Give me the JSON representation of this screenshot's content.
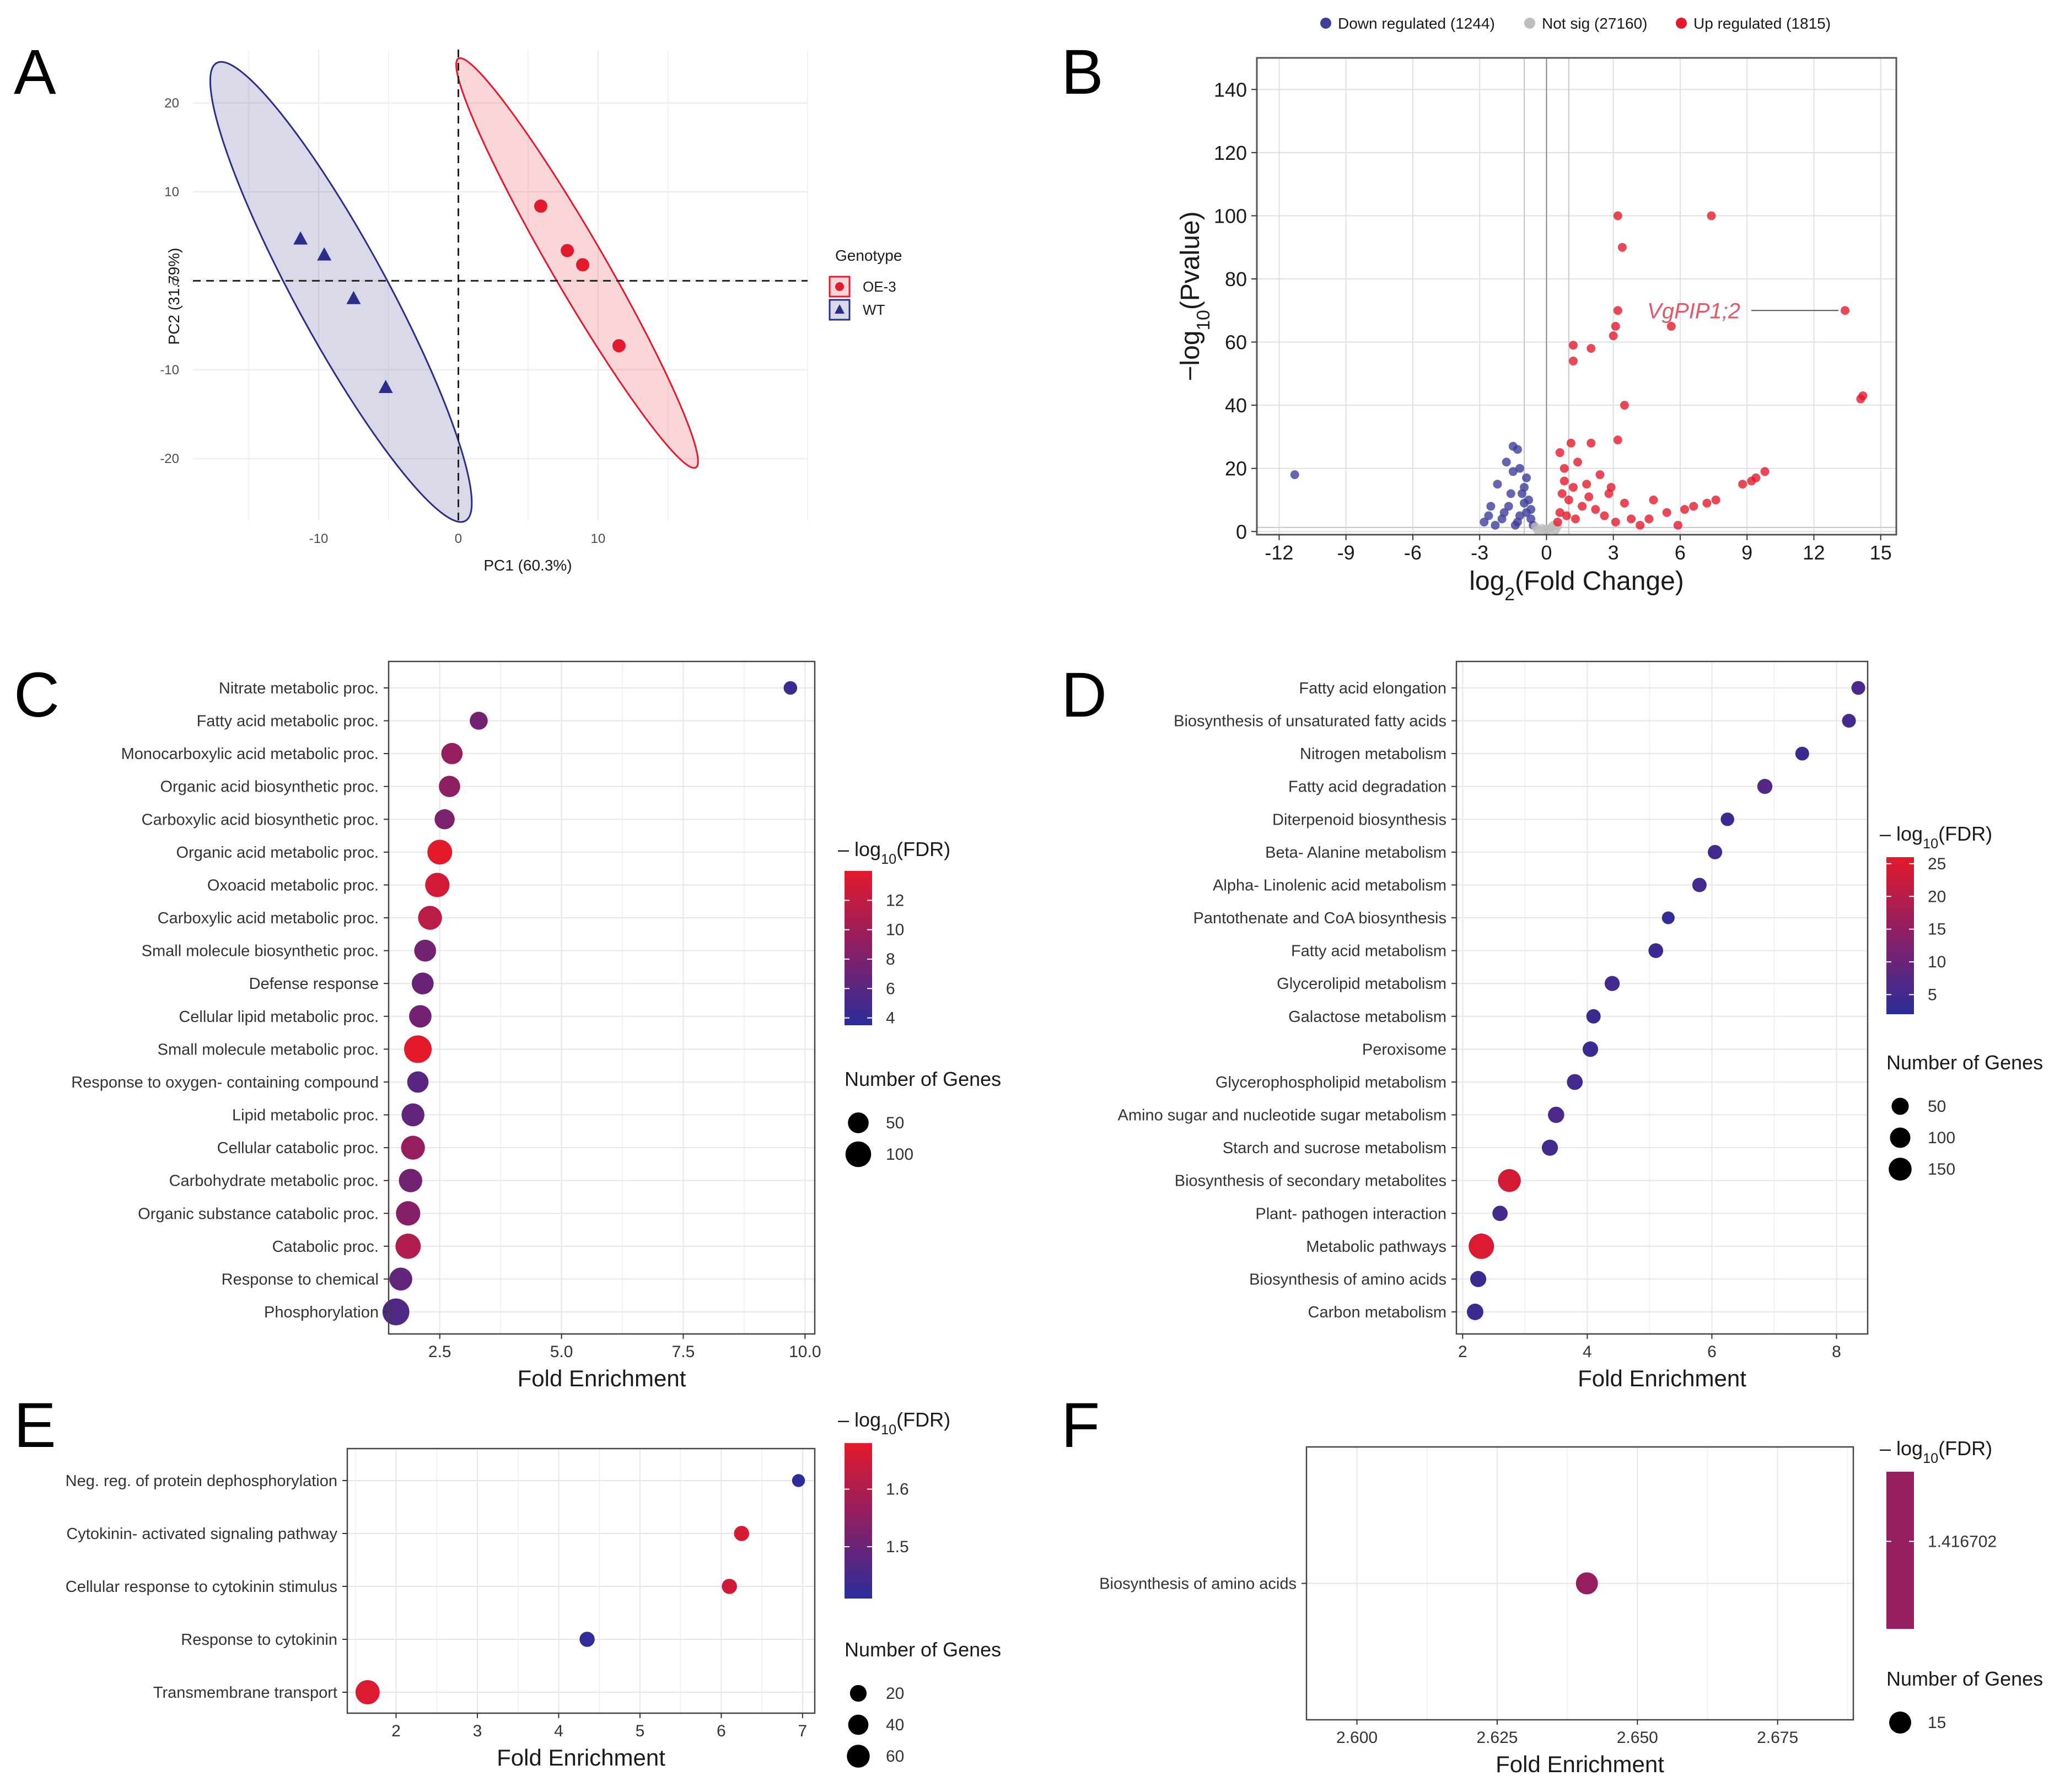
{
  "chart_data": [
    {
      "id": "A",
      "panel_label": "A",
      "type": "scatter",
      "title": "",
      "xlabel": "PC1 (60.3%)",
      "ylabel": "PC2 (31.79%)",
      "xlim": [
        -19,
        25
      ],
      "ylim": [
        -27,
        26
      ],
      "xticks": [
        -10,
        0,
        10
      ],
      "yticks": [
        -20,
        -10,
        0,
        10,
        20
      ],
      "grid": true,
      "legend_position": "right",
      "legend_title": "Genotype",
      "series": [
        {
          "name": "OE-3",
          "marker": "circle",
          "color": "#e31a2c",
          "points": [
            [
              5.9,
              8.4
            ],
            [
              7.8,
              3.4
            ],
            [
              8.9,
              1.8
            ],
            [
              11.5,
              -7.3
            ]
          ],
          "ellipse": {
            "cx": 8.5,
            "cy": 1.6,
            "axis_ends": [
              [
                0,
                25
              ],
              [
                17,
                -21
              ]
            ],
            "half_minor": 1.9
          }
        },
        {
          "name": "WT",
          "marker": "triangle",
          "color": "#2b2d8a",
          "points": [
            [
              -11.3,
              4.7
            ],
            [
              -9.6,
              2.9
            ],
            [
              -7.5,
              -2.0
            ],
            [
              -5.2,
              -12.0
            ]
          ],
          "ellipse": {
            "cx": -8.4,
            "cy": 0.1,
            "axis_ends": [
              [
                -17.3,
                24.5
              ],
              [
                0.5,
                -27
              ]
            ],
            "half_minor": 3.3
          }
        }
      ],
      "annotations": [
        "dashed lines at x=0 and y=0"
      ]
    },
    {
      "id": "B",
      "panel_label": "B",
      "type": "scatter",
      "title": "",
      "xlabel": "log2(Fold Change)",
      "ylabel": "-log10(Pvalue)",
      "xlim": [
        -13,
        15.7
      ],
      "ylim": [
        -1,
        150
      ],
      "xticks": [
        -12,
        -9,
        -6,
        -3,
        0,
        3,
        6,
        9,
        12,
        15
      ],
      "yticks": [
        0,
        20,
        40,
        60,
        80,
        100,
        120,
        140
      ],
      "grid": true,
      "legend_position": "top",
      "legend": [
        {
          "label": "Down regulated (1244)",
          "color": "#3f3f9b"
        },
        {
          "label": "Not sig (27160)",
          "color": "#bdbdbd"
        },
        {
          "label": "Up regulated (1815)",
          "color": "#e31a2c"
        }
      ],
      "series": [
        {
          "name": "Down regulated (1244)",
          "color": "#3f3f9b",
          "points": [
            [
              -11.3,
              18
            ],
            [
              -1.8,
              22
            ],
            [
              -1.5,
              27
            ],
            [
              -1.3,
              26
            ],
            [
              -1.2,
              20
            ],
            [
              -2.2,
              15
            ],
            [
              -1.0,
              14
            ],
            [
              -1.6,
              12
            ],
            [
              -0.8,
              10
            ],
            [
              -2.5,
              8
            ],
            [
              -1.9,
              6
            ],
            [
              -1.2,
              5
            ],
            [
              -0.7,
              4
            ],
            [
              -2.8,
              3
            ],
            [
              -1.4,
              2
            ],
            [
              -1.0,
              9
            ],
            [
              -2.0,
              4
            ],
            [
              -0.9,
              6
            ],
            [
              -1.7,
              8
            ],
            [
              -0.6,
              2
            ],
            [
              -1.3,
              3
            ],
            [
              -2.3,
              2
            ],
            [
              -1.1,
              12
            ],
            [
              -0.9,
              17
            ],
            [
              -1.5,
              19
            ],
            [
              -2.6,
              5
            ],
            [
              -0.7,
              7
            ]
          ]
        },
        {
          "name": "Not sig (27160)",
          "color": "#bdbdbd",
          "points": [
            [
              -0.4,
              0.5
            ],
            [
              -0.2,
              1
            ],
            [
              0,
              0.7
            ],
            [
              0.2,
              1.2
            ],
            [
              0.4,
              0.5
            ],
            [
              -0.5,
              1.5
            ],
            [
              0.5,
              1.6
            ],
            [
              -0.1,
              0.3
            ],
            [
              0.1,
              0.4
            ],
            [
              0.3,
              2
            ]
          ]
        },
        {
          "name": "Up regulated (1815)",
          "color": "#e31a2c",
          "points": [
            [
              13.4,
              70
            ],
            [
              14.1,
              42
            ],
            [
              14.2,
              43
            ],
            [
              3.2,
              100
            ],
            [
              7.4,
              100
            ],
            [
              3.4,
              90
            ],
            [
              3.2,
              70
            ],
            [
              3.1,
              65
            ],
            [
              3.0,
              62
            ],
            [
              5.6,
              65
            ],
            [
              1.2,
              59
            ],
            [
              2.0,
              58
            ],
            [
              1.2,
              54
            ],
            [
              3.5,
              40
            ],
            [
              9.4,
              17
            ],
            [
              9.2,
              16
            ],
            [
              9.8,
              19
            ],
            [
              8.8,
              15
            ],
            [
              7.6,
              10
            ],
            [
              7.2,
              9
            ],
            [
              6.6,
              8
            ],
            [
              6.2,
              7
            ],
            [
              5.4,
              6
            ],
            [
              4.8,
              10
            ],
            [
              3.8,
              4
            ],
            [
              3.2,
              29
            ],
            [
              2.0,
              28
            ],
            [
              1.1,
              28
            ],
            [
              0.6,
              25
            ],
            [
              1.4,
              22
            ],
            [
              0.8,
              20
            ],
            [
              2.4,
              18
            ],
            [
              1.8,
              15
            ],
            [
              2.9,
              14
            ],
            [
              0.7,
              12
            ],
            [
              1.0,
              10
            ],
            [
              1.6,
              8
            ],
            [
              2.2,
              7
            ],
            [
              0.9,
              5
            ],
            [
              1.3,
              4
            ],
            [
              0.5,
              3
            ],
            [
              3.1,
              3
            ],
            [
              4.2,
              2
            ],
            [
              5.9,
              2
            ],
            [
              2.6,
              5
            ],
            [
              1.9,
              11
            ],
            [
              0.8,
              16
            ],
            [
              1.2,
              14
            ],
            [
              3.5,
              9
            ],
            [
              4.6,
              4
            ],
            [
              2.8,
              12
            ],
            [
              0.6,
              6
            ]
          ]
        }
      ],
      "annotations": [
        {
          "text": "VgPIP1;2",
          "x": 13.4,
          "y": 70
        }
      ]
    },
    {
      "id": "C",
      "panel_label": "C",
      "type": "scatter",
      "title": "",
      "xlabel": "Fold Enrichment",
      "ylabel": "",
      "xlim": [
        1.45,
        10.2
      ],
      "xticks": [
        2.5,
        5.0,
        7.5,
        10.0
      ],
      "xtick_labels": [
        "2.5",
        "5.0",
        "7.5",
        "10.0"
      ],
      "grid": true,
      "legend_position": "right",
      "color_legend_title": "- log10(FDR)",
      "color_range": [
        3.5,
        14
      ],
      "color_ticks": [
        4,
        6,
        8,
        10,
        12
      ],
      "size_legend_title": "Number of Genes",
      "size_range": [
        5,
        140
      ],
      "size_ticks": [
        50,
        100
      ],
      "categories": [
        "Nitrate metabolic proc.",
        "Fatty acid metabolic proc.",
        "Monocarboxylic acid metabolic proc.",
        "Organic acid biosynthetic proc.",
        "Carboxylic acid biosynthetic proc.",
        "Organic acid metabolic proc.",
        "Oxoacid metabolic proc.",
        "Carboxylic acid metabolic proc.",
        "Small molecule biosynthetic proc.",
        "Defense response",
        "Cellular lipid metabolic proc.",
        "Small molecule metabolic proc.",
        "Response to oxygen- containing compound",
        "Lipid metabolic proc.",
        "Cellular catabolic proc.",
        "Carbohydrate metabolic proc.",
        "Organic substance catabolic proc.",
        "Catabolic proc.",
        "Response to chemical",
        "Phosphorylation"
      ],
      "x": [
        9.7,
        3.3,
        2.75,
        2.7,
        2.6,
        2.5,
        2.45,
        2.3,
        2.2,
        2.15,
        2.1,
        2.05,
        2.05,
        1.95,
        1.95,
        1.9,
        1.85,
        1.85,
        1.7,
        1.6
      ],
      "fdr": [
        4.5,
        7.5,
        9.5,
        9.0,
        8.0,
        14.0,
        13.0,
        11.5,
        7.5,
        7.0,
        7.5,
        14.0,
        6.0,
        6.5,
        9.5,
        7.5,
        8.5,
        11.0,
        6.5,
        5.5
      ],
      "genes": [
        10,
        30,
        55,
        55,
        45,
        90,
        85,
        80,
        60,
        60,
        65,
        125,
        55,
        70,
        80,
        75,
        85,
        95,
        70,
        115
      ]
    },
    {
      "id": "D",
      "panel_label": "D",
      "type": "scatter",
      "title": "",
      "xlabel": "Fold Enrichment",
      "ylabel": "",
      "xlim": [
        1.9,
        8.5
      ],
      "xticks": [
        2,
        4,
        6,
        8
      ],
      "xtick_labels": [
        "2",
        "4",
        "6",
        "8"
      ],
      "grid": true,
      "legend_position": "right",
      "color_legend_title": "- log10(FDR)",
      "color_range": [
        2,
        26
      ],
      "color_ticks": [
        5,
        10,
        15,
        20,
        25
      ],
      "size_legend_title": "Number of Genes",
      "size_range": [
        5,
        210
      ],
      "size_ticks": [
        50,
        100,
        150
      ],
      "categories": [
        "Fatty acid elongation",
        "Biosynthesis of unsaturated fatty acids",
        "Nitrogen metabolism",
        "Fatty acid degradation",
        "Diterpenoid biosynthesis",
        "Beta- Alanine metabolism",
        "Alpha- Linolenic acid metabolism",
        "Pantothenate and CoA biosynthesis",
        "Fatty acid metabolism",
        "Glycerolipid metabolism",
        "Galactose metabolism",
        "Peroxisome",
        "Glycerophospholipid metabolism",
        "Amino sugar and nucleotide sugar metabolism",
        "Starch and sucrose metabolism",
        "Biosynthesis of secondary metabolites",
        "Plant- pathogen interaction",
        "Metabolic pathways",
        "Biosynthesis of amino acids",
        "Carbon metabolism"
      ],
      "x": [
        8.35,
        8.2,
        7.45,
        6.85,
        6.25,
        6.05,
        5.8,
        5.3,
        5.1,
        4.4,
        4.1,
        4.05,
        3.8,
        3.5,
        3.4,
        2.75,
        2.6,
        2.3,
        2.25,
        2.2
      ],
      "fdr": [
        6,
        5,
        4,
        7,
        4,
        5,
        5,
        3,
        4,
        5,
        4,
        4,
        5,
        6,
        5,
        24,
        5,
        25,
        4,
        4
      ],
      "genes": [
        18,
        18,
        18,
        28,
        16,
        22,
        22,
        12,
        25,
        28,
        22,
        32,
        35,
        40,
        38,
        150,
        30,
        210,
        38,
        42
      ]
    },
    {
      "id": "E",
      "panel_label": "E",
      "type": "scatter",
      "title": "",
      "xlabel": "Fold Enrichment",
      "ylabel": "",
      "xlim": [
        1.4,
        7.15
      ],
      "xticks": [
        2,
        3,
        4,
        5,
        6,
        7
      ],
      "xtick_labels": [
        "2",
        "3",
        "4",
        "5",
        "6",
        "7"
      ],
      "grid": true,
      "legend_position": "right",
      "color_legend_title": "- log10(FDR)",
      "color_range": [
        1.41,
        1.68
      ],
      "color_ticks": [
        1.5,
        1.6
      ],
      "size_legend_title": "Number of Genes",
      "size_range": [
        5,
        72
      ],
      "size_ticks": [
        20,
        40,
        60
      ],
      "categories": [
        "Neg. reg. of protein dephosphorylation",
        "Cytokinin- activated signaling pathway",
        "Cellular response to cytokinin stimulus",
        "Response to cytokinin",
        "Transmembrane transport"
      ],
      "x": [
        6.95,
        6.25,
        6.1,
        4.35,
        1.65
      ],
      "fdr": [
        1.41,
        1.66,
        1.65,
        1.42,
        1.67
      ],
      "genes": [
        8,
        14,
        14,
        14,
        72
      ]
    },
    {
      "id": "F",
      "panel_label": "F",
      "type": "scatter",
      "title": "",
      "xlabel": "Fold Enrichment",
      "ylabel": "",
      "xlim": [
        2.591,
        2.6885
      ],
      "xticks": [
        2.6,
        2.625,
        2.65,
        2.675
      ],
      "xtick_labels": [
        "2.600",
        "2.625",
        "2.650",
        "2.675"
      ],
      "grid": true,
      "legend_position": "right",
      "color_legend_title": "- log10(FDR)",
      "color_range": [
        1.4,
        1.43
      ],
      "color_ticks": [
        1.416702
      ],
      "color_tick_labels": [
        "1.416702"
      ],
      "size_legend_title": "Number of Genes",
      "size_range": [
        0,
        15
      ],
      "size_ticks": [
        15
      ],
      "categories": [
        "Biosynthesis of amino acids"
      ],
      "x": [
        2.641
      ],
      "fdr": [
        1.416702
      ],
      "genes": [
        15
      ]
    }
  ]
}
